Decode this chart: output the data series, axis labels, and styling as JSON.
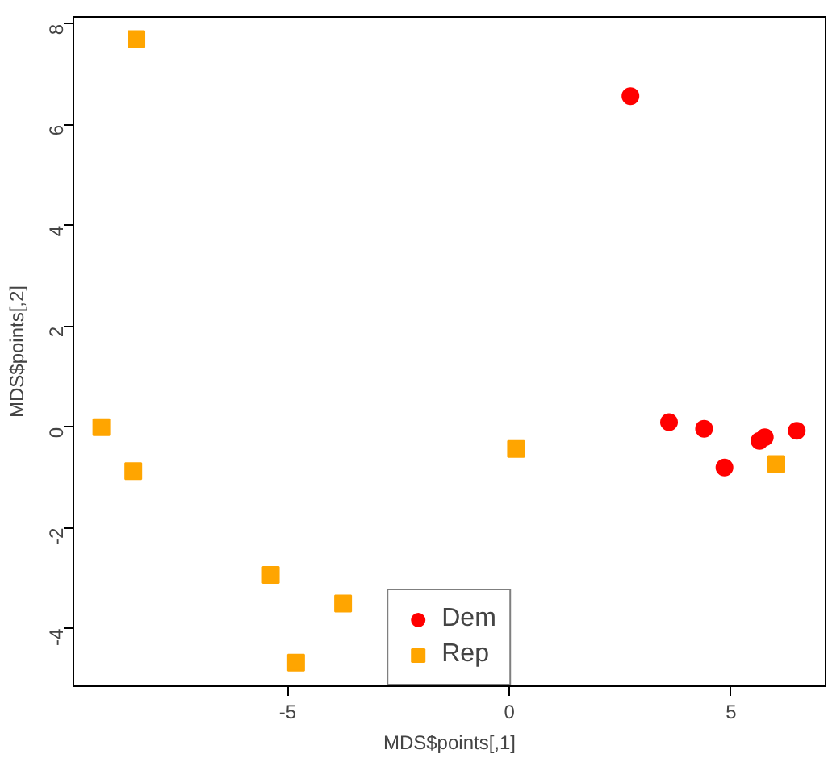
{
  "chart_data": {
    "type": "scatter",
    "xlabel": "MDS$points[,1]",
    "ylabel": "MDS$points[,2]",
    "xlim": [
      -9.83,
      7.13
    ],
    "ylim": [
      -5.14,
      8.14
    ],
    "xticks": [
      -5,
      0,
      5
    ],
    "yticks": [
      -4,
      -2,
      0,
      2,
      4,
      6,
      8
    ],
    "grid": false,
    "legend": "bottom",
    "series": [
      {
        "name": "Dem",
        "color": "#ff0000",
        "marker": "circle",
        "x": [
          2.73,
          3.6,
          4.39,
          4.85,
          5.64,
          5.76,
          6.48
        ],
        "values": [
          6.57,
          0.1,
          -0.03,
          -0.8,
          -0.27,
          -0.2,
          -0.07
        ]
      },
      {
        "name": "Rep",
        "color": "#ffa500",
        "marker": "square",
        "x": [
          -8.41,
          -9.2,
          -8.48,
          -5.38,
          -3.75,
          -4.81,
          0.15,
          6.02
        ],
        "values": [
          7.7,
          0.0,
          -0.87,
          -2.93,
          -3.5,
          -4.67,
          -0.43,
          -0.73
        ]
      }
    ]
  }
}
